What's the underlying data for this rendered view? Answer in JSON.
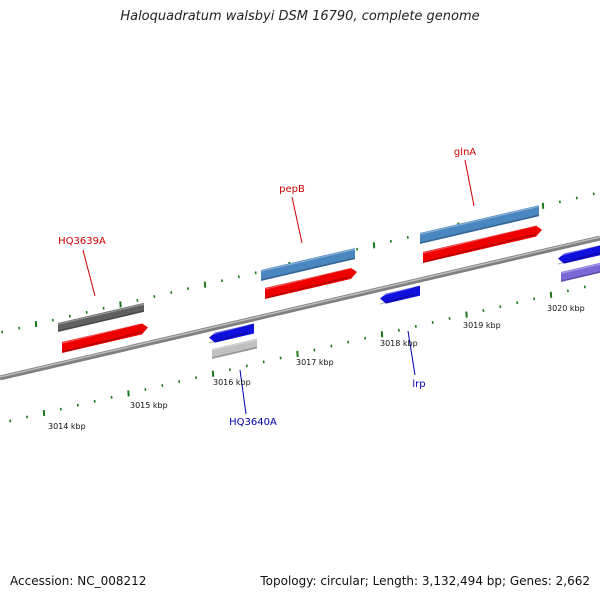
{
  "title": "Haloquadratum walsbyi DSM 16790, complete genome",
  "footer": {
    "accession": "Accession: NC_008212",
    "summary": "Topology: circular; Length: 3,132,494 bp; Genes: 2,662"
  },
  "colors": {
    "forward_label": "#cc0000",
    "reverse_label": "#0000aa",
    "tick": "#1a7a1a",
    "axis": "#808080",
    "gene_red": "#ee0000",
    "gene_blue": "#1010dd",
    "gene_steelblue": "#4a86c0",
    "gene_gray": "#606060",
    "gene_lightgray": "#c0c0c0",
    "gene_purple": "#7a6ad8"
  },
  "kbp_labels": [
    {
      "id": "kbp-3014",
      "text": "3014 kbp"
    },
    {
      "id": "kbp-3015",
      "text": "3015 kbp"
    },
    {
      "id": "kbp-3016",
      "text": "3016 kbp"
    },
    {
      "id": "kbp-3017",
      "text": "3017 kbp"
    },
    {
      "id": "kbp-3018",
      "text": "3018 kbp"
    },
    {
      "id": "kbp-3019",
      "text": "3019 kbp"
    },
    {
      "id": "kbp-3020",
      "text": "3020 kbp"
    }
  ],
  "gene_labels": [
    {
      "id": "HQ3639A",
      "text": "HQ3639A",
      "strand": "forward"
    },
    {
      "id": "pepB",
      "text": "pepB",
      "strand": "forward"
    },
    {
      "id": "glnA",
      "text": "glnA",
      "strand": "forward"
    },
    {
      "id": "HQ3640A",
      "text": "HQ3640A",
      "strand": "reverse"
    },
    {
      "id": "lrp",
      "text": "lrp",
      "strand": "reverse"
    }
  ]
}
